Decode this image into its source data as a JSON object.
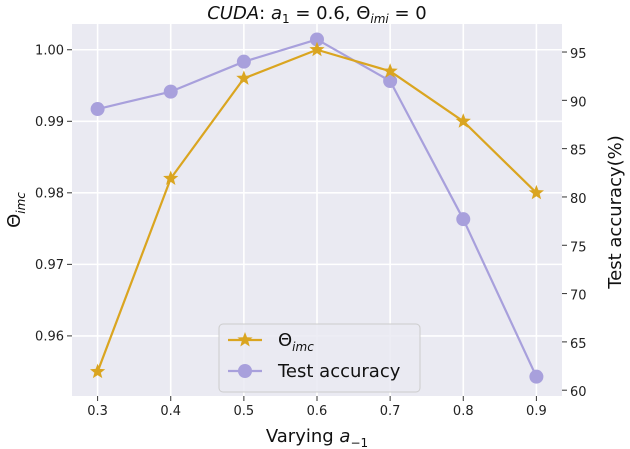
{
  "chart_data": {
    "type": "line",
    "title_parts": [
      "CUDA",
      ": ",
      "a",
      "1",
      " = 0.6, ",
      "Θ",
      "imi",
      " = 0"
    ],
    "xlabel_parts": [
      "Varying ",
      "a",
      "−1"
    ],
    "ylabel_left_parts": [
      "Θ",
      "imc"
    ],
    "ylabel_right": "Test accuracy(%)",
    "x": [
      0.3,
      0.4,
      0.5,
      0.6,
      0.7,
      0.8,
      0.9
    ],
    "x_ticks": [
      "0.3",
      "0.4",
      "0.5",
      "0.6",
      "0.7",
      "0.8",
      "0.9"
    ],
    "xlim": [
      0.265,
      0.935
    ],
    "ylim_left": [
      0.9516,
      1.0036
    ],
    "ylim_right": [
      59.4,
      97.9
    ],
    "left_ticks": [
      0.96,
      0.97,
      0.98,
      0.99,
      1.0
    ],
    "left_tick_labels": [
      "0.96",
      "0.97",
      "0.98",
      "0.99",
      "1.00"
    ],
    "right_ticks": [
      60,
      65,
      70,
      75,
      80,
      85,
      90,
      95
    ],
    "right_tick_labels": [
      "60",
      "65",
      "70",
      "75",
      "80",
      "85",
      "90",
      "95"
    ],
    "grid": true,
    "legend_position": "lower-center",
    "series": [
      {
        "name": "theta_imc",
        "legend_parts": [
          "Θ",
          "imc"
        ],
        "axis": "left",
        "marker": "star",
        "color": "#DAA520",
        "values": [
          0.955,
          0.982,
          0.996,
          1.0,
          0.997,
          0.99,
          0.98
        ]
      },
      {
        "name": "test_accuracy",
        "legend_label": "Test accuracy",
        "axis": "right",
        "marker": "circle",
        "color": "#A8A0DC",
        "values": [
          89.1,
          90.9,
          94.0,
          96.3,
          92.0,
          77.7,
          61.4
        ]
      }
    ]
  }
}
